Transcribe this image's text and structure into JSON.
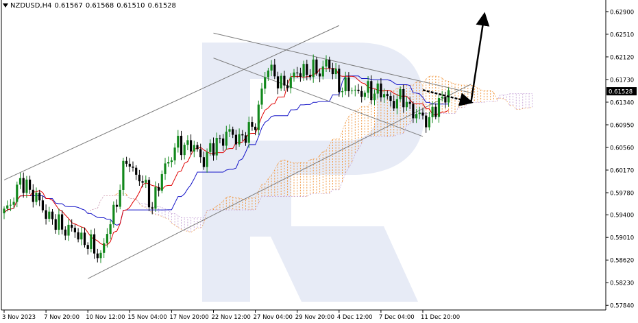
{
  "header": {
    "symbol": "NZDUSD,H4",
    "open": "0.61567",
    "high": "0.61568",
    "low": "0.61510",
    "close": "0.61528"
  },
  "colors": {
    "bull": "#12881c",
    "bear": "#000000",
    "tenkan": "#e00000",
    "kijun": "#1414c8",
    "cloud": "#f1963c",
    "channel": "#7b7b7b",
    "price_badge": "#000000",
    "watermark": "#b9c6e5"
  },
  "chart_data": {
    "type": "candlestick",
    "ylim": [
      0.5776,
      0.631
    ],
    "price_ticks": [
      "0.62900",
      "0.62510",
      "0.62120",
      "0.61730",
      "0.61340",
      "0.60950",
      "0.60560",
      "0.60170",
      "0.59780",
      "0.59400",
      "0.59010",
      "0.58620",
      "0.58230",
      "0.57840"
    ],
    "current_price": "0.61528",
    "time_labels": [
      "3 Nov 2023",
      "7 Nov 20:00",
      "10 Nov 12:00",
      "15 Nov 04:00",
      "17 Nov 20:00",
      "22 Nov 12:00",
      "27 Nov 04:00",
      "29 Nov 20:00",
      "4 Dec 12:00",
      "7 Dec 04:00",
      "11 Dec 20:00"
    ],
    "anchors": [
      [
        0,
        0.594
      ],
      [
        5,
        0.5995
      ],
      [
        8,
        0.5985
      ],
      [
        12,
        0.595
      ],
      [
        16,
        0.5925
      ],
      [
        22,
        0.591
      ],
      [
        26,
        0.589
      ],
      [
        30,
        0.587
      ],
      [
        34,
        0.5945
      ],
      [
        38,
        0.6035
      ],
      [
        44,
        0.5985
      ],
      [
        46,
        0.5955
      ],
      [
        50,
        0.6025
      ],
      [
        54,
        0.606
      ],
      [
        58,
        0.606
      ],
      [
        62,
        0.6035
      ],
      [
        66,
        0.6065
      ],
      [
        70,
        0.608
      ],
      [
        74,
        0.607
      ],
      [
        78,
        0.61
      ],
      [
        82,
        0.62
      ],
      [
        86,
        0.616
      ],
      [
        90,
        0.618
      ],
      [
        94,
        0.619
      ],
      [
        98,
        0.6185
      ],
      [
        100,
        0.6205
      ],
      [
        104,
        0.6165
      ],
      [
        108,
        0.6155
      ],
      [
        112,
        0.615
      ],
      [
        116,
        0.6155
      ],
      [
        120,
        0.6135
      ],
      [
        124,
        0.614
      ],
      [
        128,
        0.611
      ],
      [
        132,
        0.6105
      ],
      [
        136,
        0.614
      ],
      [
        138,
        0.6153
      ]
    ],
    "channels": [
      {
        "name": "rising-channel-upper",
        "points": [
          [
            "3 Nov 2023",
            0.6
          ],
          [
            "4 Dec 12:00",
            0.6266
          ]
        ]
      },
      {
        "name": "rising-channel-lower",
        "points": [
          [
            "10 Nov 12:00",
            0.583
          ],
          [
            "11 Dec 20:00+",
            0.6165
          ]
        ]
      },
      {
        "name": "falling-channel-upper",
        "points": [
          [
            "22 Nov 12:00",
            0.6253
          ],
          [
            "11 Dec 20:00+",
            0.615
          ]
        ]
      },
      {
        "name": "falling-channel-lower",
        "points": [
          [
            "22 Nov 12:00",
            0.621
          ],
          [
            "11 Dec 20:00",
            0.6075
          ]
        ]
      }
    ],
    "forecast": {
      "pullback": [
        [
          "11 Dec 20:00",
          0.6155
        ],
        [
          "11 Dec 20:00+",
          0.6135
        ]
      ],
      "target": [
        [
          "11 Dec 20:00+",
          0.6135
        ],
        [
          "11 Dec 20:00++",
          0.629
        ]
      ]
    }
  }
}
